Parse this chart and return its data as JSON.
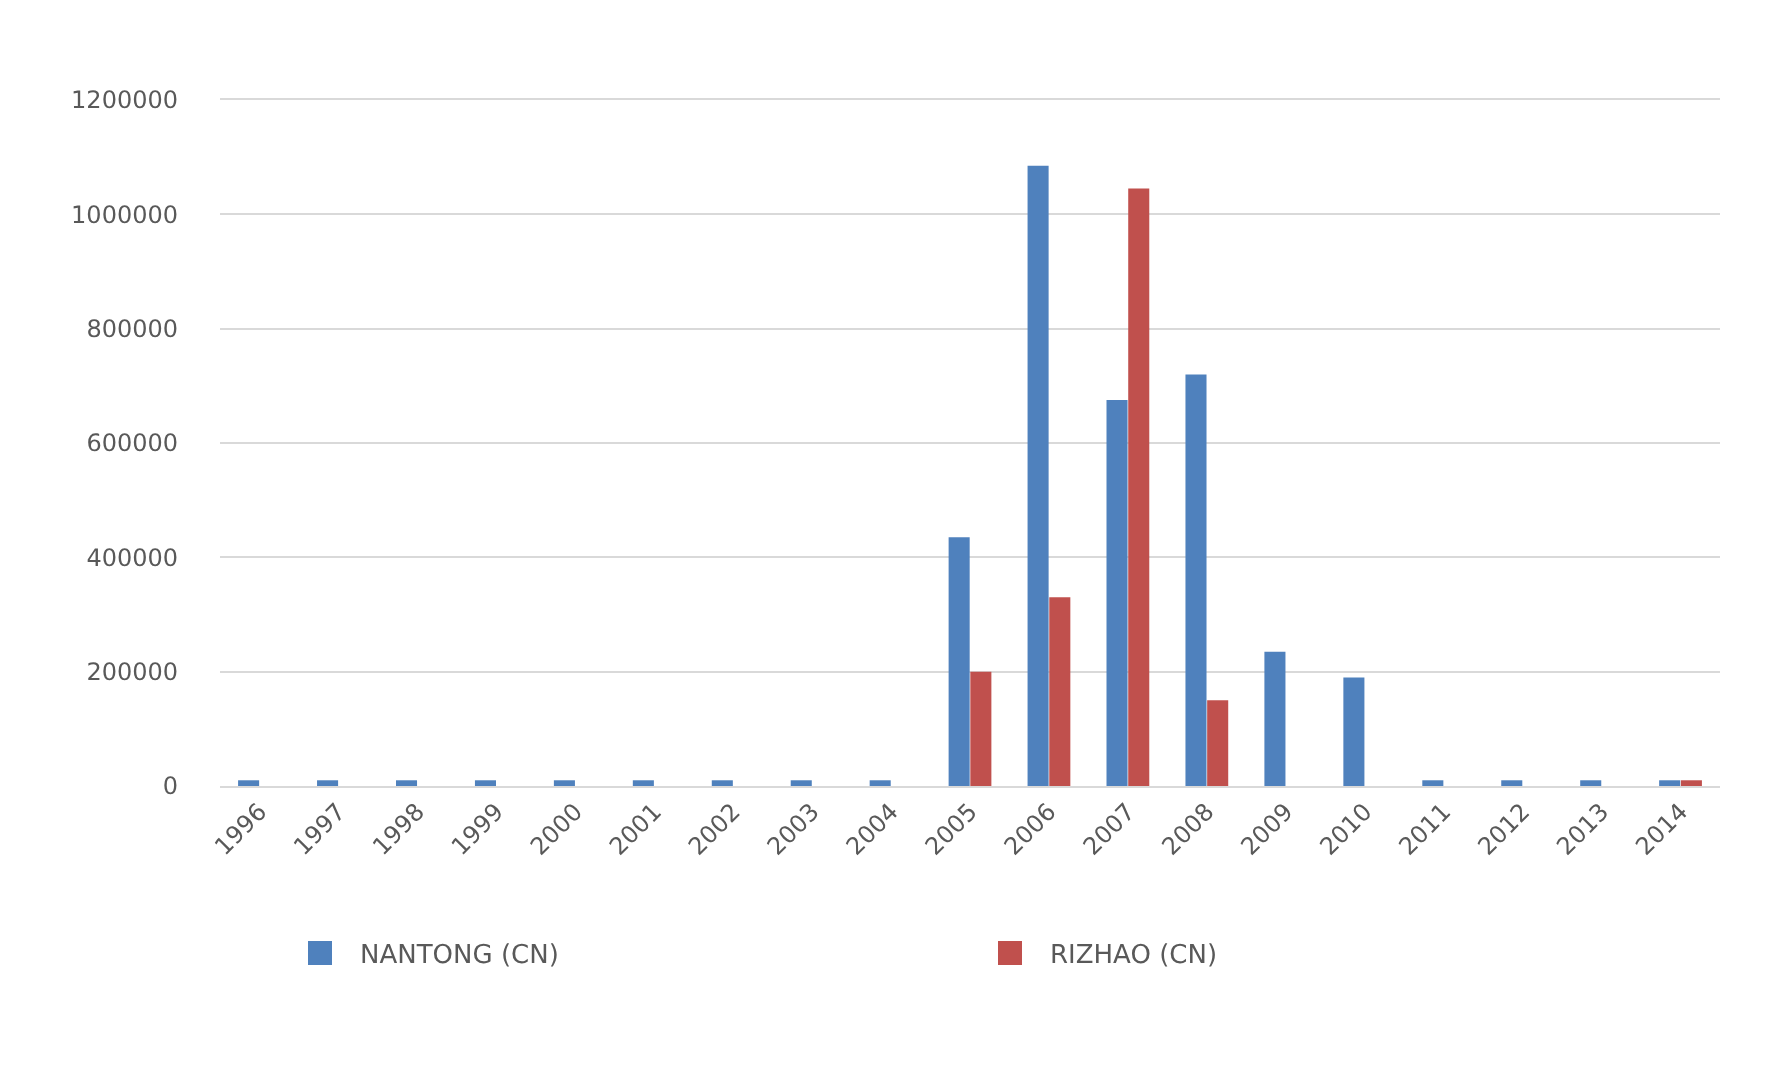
{
  "chart_data": {
    "type": "bar",
    "categories": [
      "1996",
      "1997",
      "1998",
      "1999",
      "2000",
      "2001",
      "2002",
      "2003",
      "2004",
      "2005",
      "2006",
      "2007",
      "2008",
      "2009",
      "2010",
      "2011",
      "2012",
      "2013",
      "2014"
    ],
    "series": [
      {
        "name": "NANTONG (CN)",
        "color": "#4f81bd",
        "values": [
          10000,
          10000,
          10000,
          10000,
          10000,
          10000,
          10000,
          10000,
          10000,
          435000,
          1085000,
          675000,
          720000,
          235000,
          190000,
          10000,
          10000,
          10000,
          10000
        ]
      },
      {
        "name": "RIZHAO (CN)",
        "color": "#c0504d",
        "values": [
          null,
          null,
          null,
          null,
          null,
          null,
          null,
          null,
          null,
          200000,
          330000,
          1045000,
          150000,
          null,
          null,
          null,
          null,
          null,
          10000
        ]
      }
    ],
    "ylim": [
      0,
      1200000
    ],
    "yticks": [
      0,
      200000,
      400000,
      600000,
      800000,
      1000000,
      1200000
    ],
    "grid": "y",
    "legend": "bottom"
  }
}
